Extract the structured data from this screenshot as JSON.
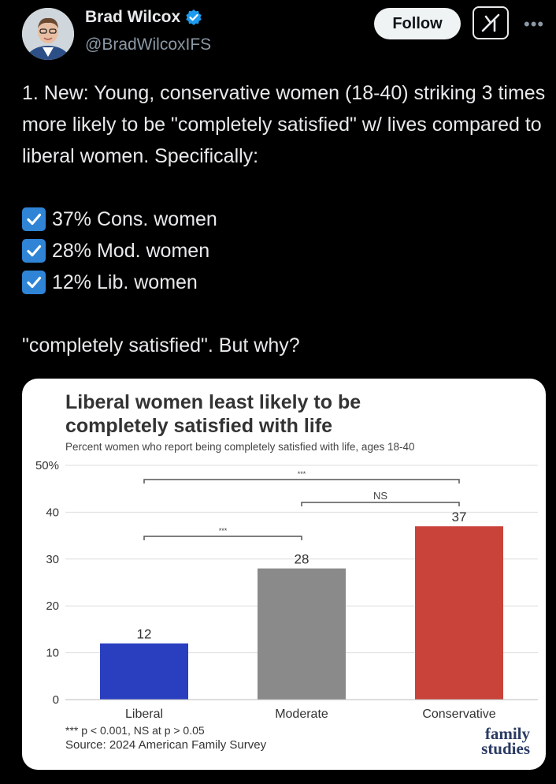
{
  "author": {
    "display_name": "Brad Wilcox",
    "handle": "@BradWilcoxIFS",
    "verified": true
  },
  "actions": {
    "follow_label": "Follow",
    "grok_icon": "grok-icon",
    "more_icon": "more-icon"
  },
  "tweet": {
    "lines": [
      "1. New: Young, conservative women (18-40) striking 3 times more likely to be \"completely satisfied\" w/ lives compared to liberal women. Specifically:"
    ],
    "checks": [
      "37% Cons. women",
      "28% Mod. women",
      "12% Lib. women"
    ],
    "closing": "\"completely satisfied\". But why?"
  },
  "colors": {
    "accent_blue": "#1d9bf0",
    "check_blue": "#2f84d6",
    "liberal": "#2a3fbf",
    "moderate": "#8a8a8a",
    "conservative": "#c9433a"
  },
  "chart_data": {
    "type": "bar",
    "title_line1": "Liberal women least likely to be",
    "title_line2": "completely satisfied with life",
    "subtitle": "Percent women who report being completely satisfied with life, ages 18-40",
    "categories": [
      "Liberal",
      "Moderate",
      "Conservative"
    ],
    "values": [
      12,
      28,
      37
    ],
    "data_labels": [
      "12",
      "28",
      "37"
    ],
    "colors": [
      "#2a3fbf",
      "#8a8a8a",
      "#c9433a"
    ],
    "ylim": [
      0,
      50
    ],
    "yticks": [
      "0",
      "10",
      "20",
      "30",
      "40",
      "50%"
    ],
    "grid": true,
    "brackets": [
      {
        "from": 0,
        "to": 2,
        "label": "***"
      },
      {
        "from": 1,
        "to": 2,
        "label": "NS"
      },
      {
        "from": 0,
        "to": 1,
        "label": "***"
      }
    ],
    "footnote": "*** p < 0.001, NS at p > 0.05",
    "source": "Source: 2024 American Family Survey",
    "logo_line1": "family",
    "logo_line2": "studies"
  }
}
